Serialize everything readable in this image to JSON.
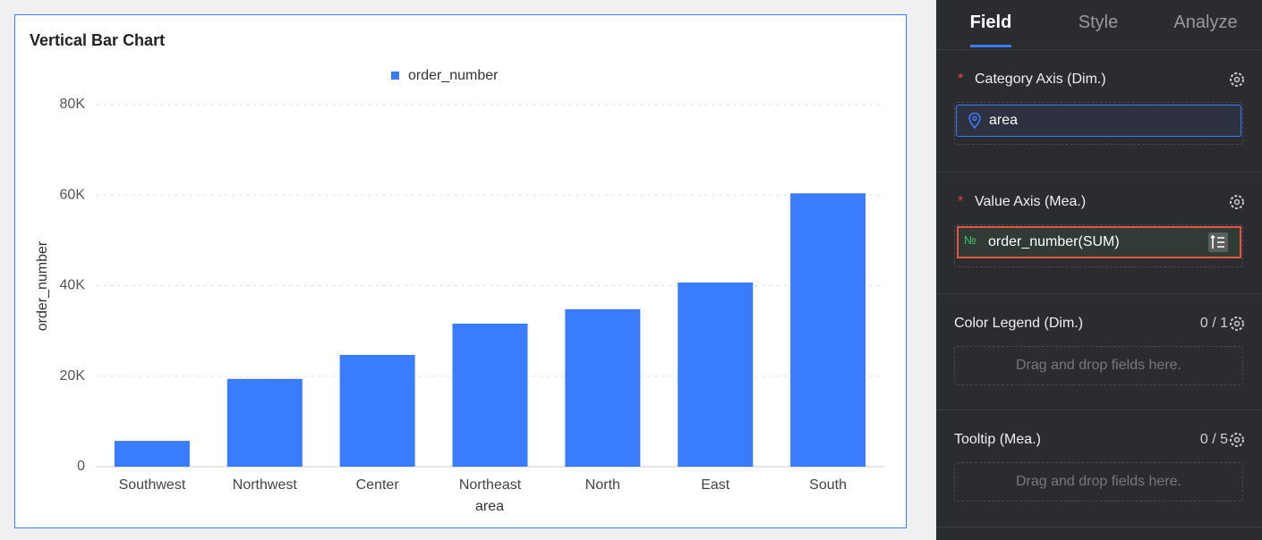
{
  "chart_data": {
    "type": "bar",
    "title": "Vertical Bar Chart",
    "categories": [
      "Southwest",
      "Northwest",
      "Center",
      "Northeast",
      "North",
      "East",
      "South"
    ],
    "series": [
      {
        "name": "order_number",
        "color": "#3a7cff",
        "values": [
          5700,
          19400,
          24700,
          31600,
          34800,
          40700,
          60400
        ]
      }
    ],
    "x_label": "area",
    "y_label": "order_number",
    "ylim": [
      0,
      80000
    ],
    "yticks": [
      0,
      {
        "value": 20000,
        "label": "20K"
      },
      {
        "value": 40000,
        "label": "40K"
      },
      {
        "value": 60000,
        "label": "60K"
      },
      {
        "value": 80000,
        "label": "80K"
      }
    ],
    "grid": true
  },
  "panel": {
    "tabs": [
      "Field",
      "Style",
      "Analyze"
    ],
    "sections": [
      {
        "required": "*",
        "title": "Category Axis (Dim.)",
        "field": "area"
      },
      {
        "required": "*",
        "title": "Value Axis (Mea.)",
        "field_icon": "№",
        "field": "order_number(SUM)"
      },
      {
        "title": "Color Legend (Dim.)",
        "count": "0 / 1",
        "placeholder": "Drag and drop fields here."
      },
      {
        "title": "Tooltip (Mea.)",
        "count": "0 / 5",
        "placeholder": "Drag and drop fields here."
      }
    ]
  }
}
